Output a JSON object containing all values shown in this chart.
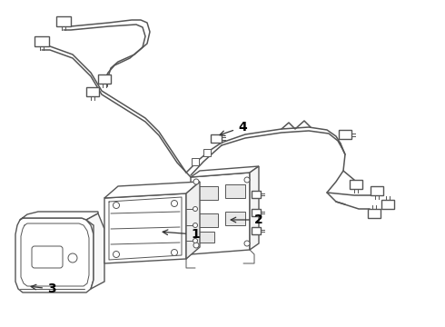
{
  "background_color": "#ffffff",
  "line_color": "#555555",
  "label_color": "#000000",
  "figsize": [
    4.9,
    3.6
  ],
  "dpi": 100,
  "lw": 1.0,
  "lw_thin": 0.7,
  "lw_cable": 1.1
}
